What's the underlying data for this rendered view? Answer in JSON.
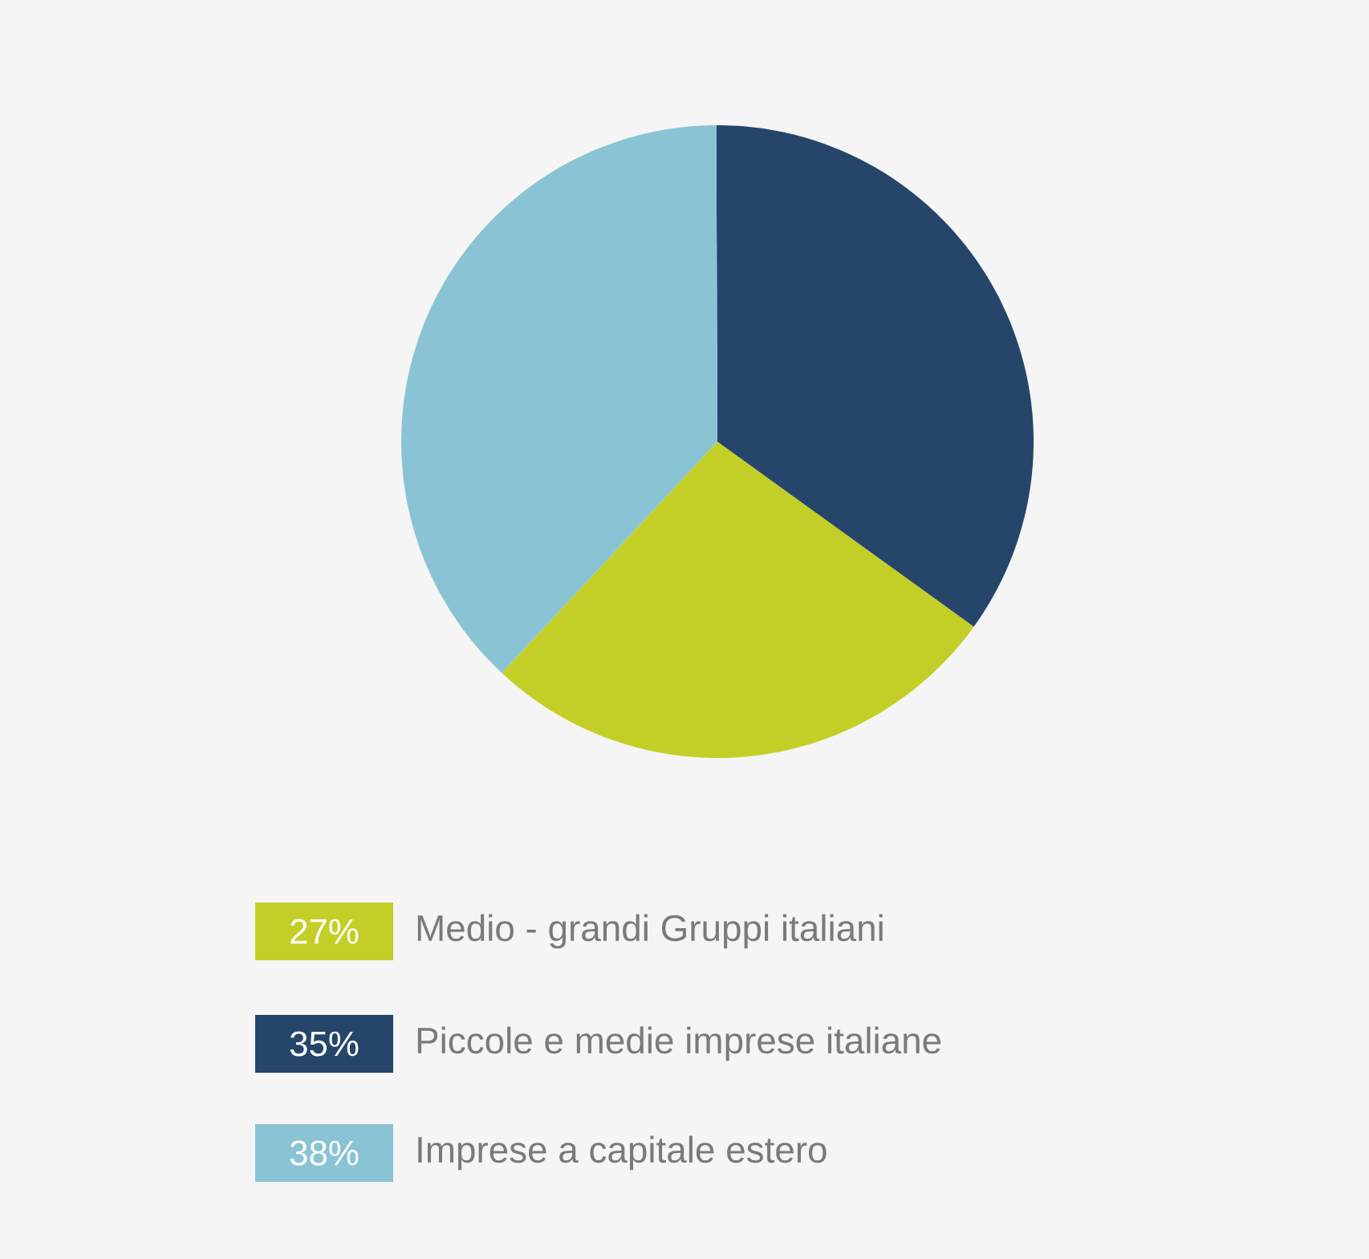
{
  "chart_data": {
    "type": "pie",
    "categories": [
      "Medio - grandi Gruppi italiani",
      "Piccole e medie imprese italiane",
      "Imprese a capitale estero"
    ],
    "values": [
      27,
      35,
      38
    ],
    "colors": [
      "#c3cf27",
      "#26456a",
      "#8ac4d4"
    ],
    "value_labels": [
      "27%",
      "35%",
      "38%"
    ],
    "legend": "bottom"
  }
}
